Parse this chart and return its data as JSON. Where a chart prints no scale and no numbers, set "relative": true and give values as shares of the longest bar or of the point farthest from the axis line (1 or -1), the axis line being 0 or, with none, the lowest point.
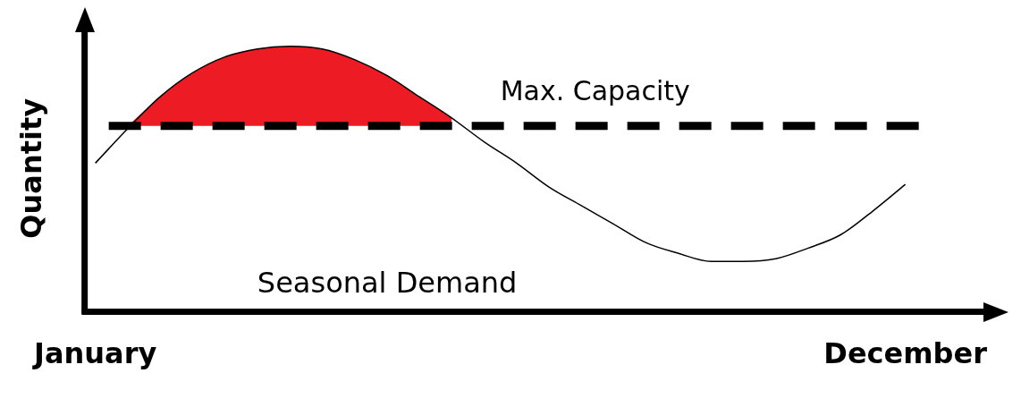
{
  "chart_data": {
    "type": "line",
    "relative": true,
    "ylabel": "Quantity",
    "categories": [
      "January",
      null,
      null,
      null,
      null,
      null,
      null,
      null,
      null,
      null,
      null,
      null,
      null,
      null,
      null,
      null,
      null,
      null,
      null,
      null,
      null,
      null,
      null,
      null,
      null,
      "December"
    ],
    "series": [
      {
        "name": "Seasonal Demand",
        "color": "#000000",
        "values": [
          0.56,
          0.69,
          0.81,
          0.9,
          0.96,
          0.99,
          1,
          0.99,
          0.95,
          0.89,
          0.81,
          0.73,
          0.64,
          0.56,
          0.47,
          0.4,
          0.33,
          0.26,
          0.22,
          0.19,
          0.19,
          0.2,
          0.24,
          0.29,
          0.38,
          0.48
        ]
      },
      {
        "type": "area",
        "color": "#ed1c24",
        "values": [
          null,
          0.7,
          0.81,
          0.9,
          0.96,
          0.99,
          1,
          0.99,
          0.95,
          0.89,
          0.81,
          0.73,
          null,
          null,
          null,
          null,
          null,
          null,
          null,
          null,
          null,
          null,
          null,
          null,
          null,
          null
        ]
      }
    ],
    "ref_lines": [
      {
        "axis": "y",
        "value": 0.7,
        "label": "Max. Capacity",
        "color": "#000000",
        "line_style": "dashed"
      }
    ],
    "grid": false,
    "legend": false,
    "marker": "none"
  }
}
